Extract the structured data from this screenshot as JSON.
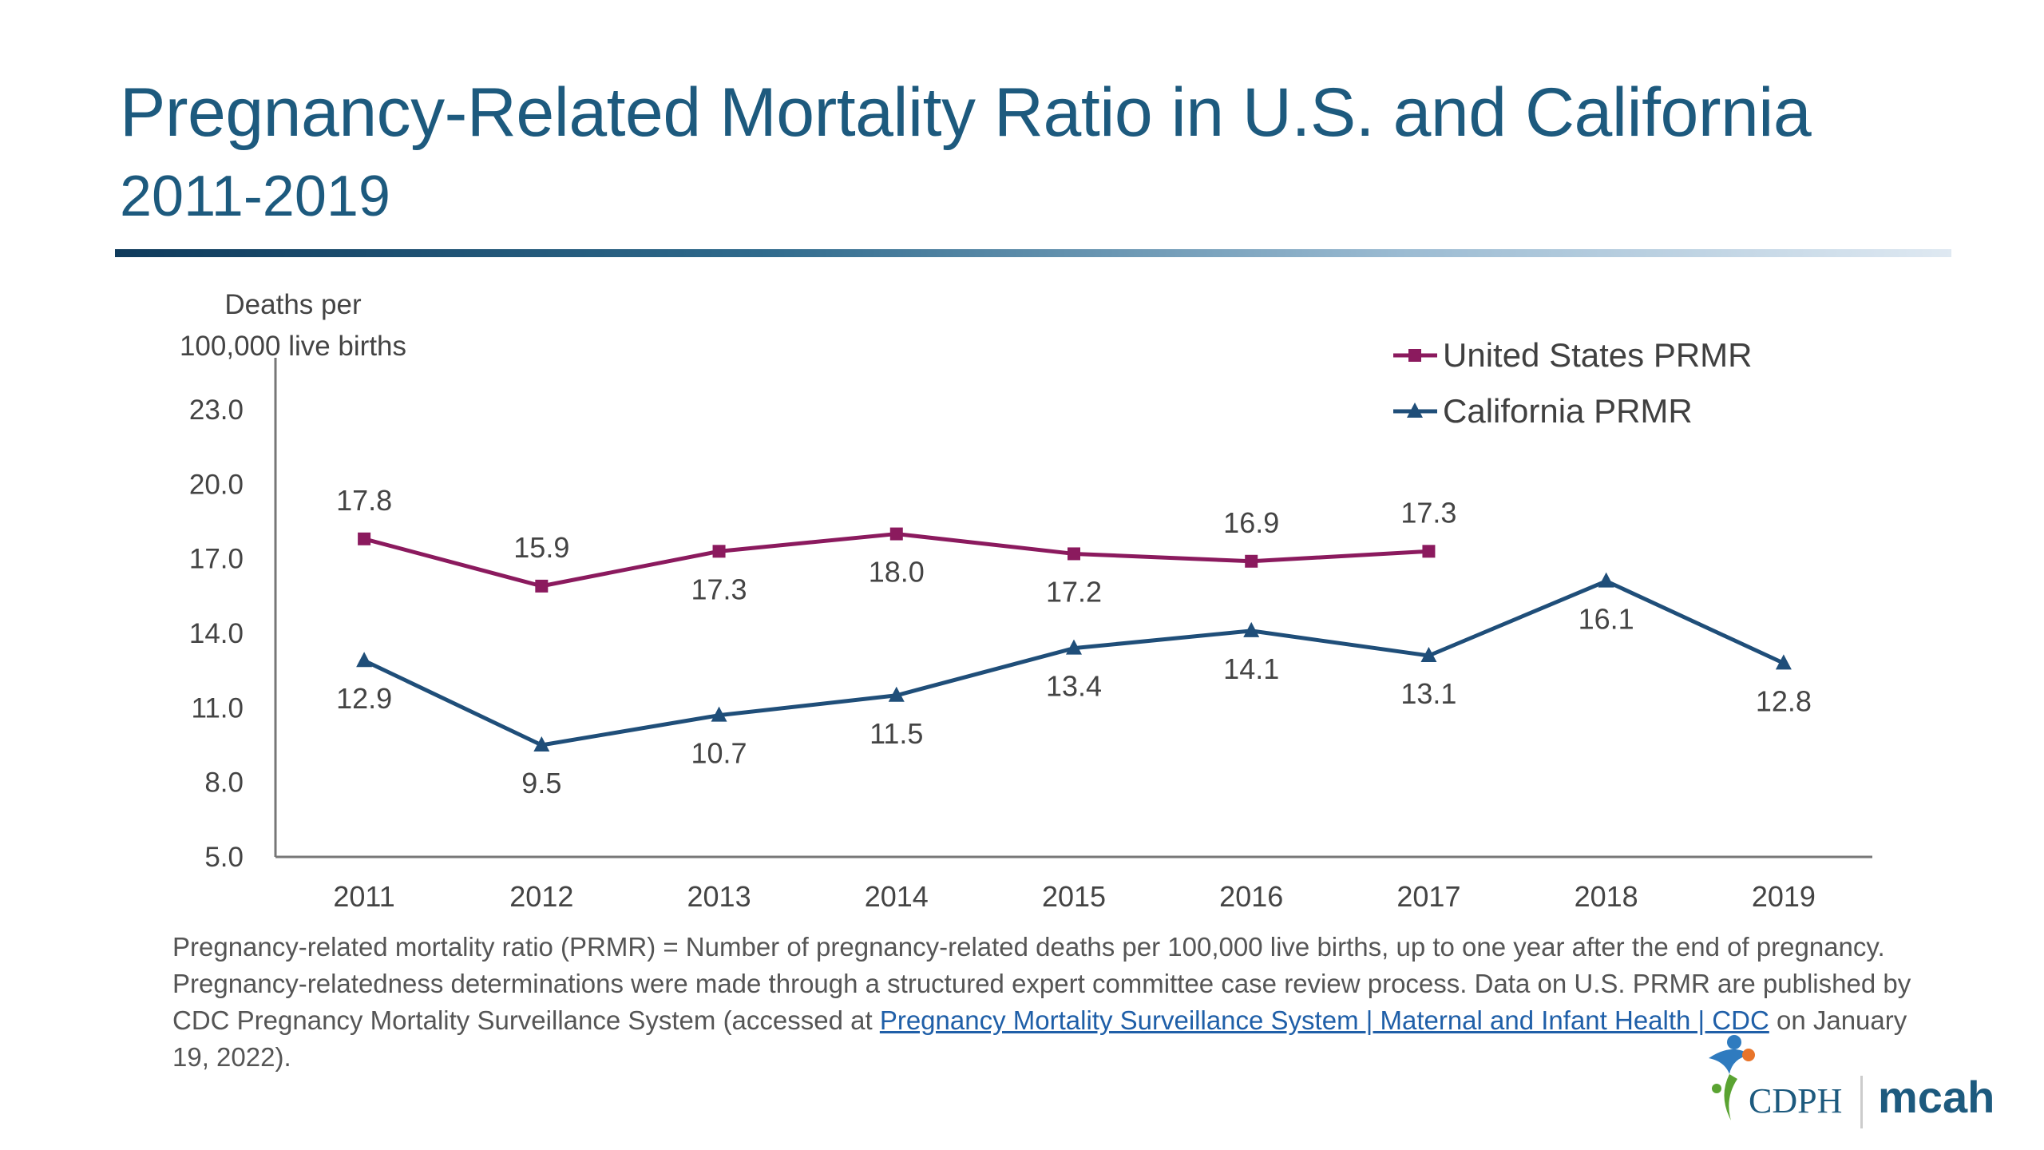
{
  "slide": {
    "title": "Pregnancy-Related Mortality Ratio in U.S. and California",
    "subtitle": "2011-2019"
  },
  "chart_data": {
    "type": "line",
    "ylabel_line1": "Deaths per",
    "ylabel_line2": "100,000 live births",
    "ylim": [
      5.0,
      23.0
    ],
    "yticks": [
      "23.0",
      "20.0",
      "17.0",
      "14.0",
      "11.0",
      "8.0",
      "5.0"
    ],
    "categories": [
      "2011",
      "2012",
      "2013",
      "2014",
      "2015",
      "2016",
      "2017",
      "2018",
      "2019"
    ],
    "grid": false,
    "legend_position": "top-right",
    "series": [
      {
        "name": "United States PRMR",
        "color": "#8b1a5e",
        "marker": "square",
        "values": [
          17.8,
          15.9,
          17.3,
          18.0,
          17.2,
          16.9,
          17.3,
          null,
          null
        ],
        "labels": [
          "17.8",
          "15.9",
          "17.3",
          "18.0",
          "17.2",
          "16.9",
          "17.3",
          null,
          null
        ],
        "label_pos": [
          "above",
          "above",
          "below",
          "below",
          "below",
          "above",
          "above",
          null,
          null
        ]
      },
      {
        "name": "California PRMR",
        "color": "#1f4e79",
        "marker": "triangle",
        "values": [
          12.9,
          9.5,
          10.7,
          11.5,
          13.4,
          14.1,
          13.1,
          16.1,
          12.8
        ],
        "labels": [
          "12.9",
          "9.5",
          "10.7",
          "11.5",
          "13.4",
          "14.1",
          "13.1",
          "16.1",
          "12.8"
        ],
        "label_pos": [
          "below",
          "below",
          "below",
          "below",
          "below",
          "below",
          "below",
          "below",
          "below"
        ]
      }
    ]
  },
  "footnote": {
    "text": "Pregnancy-related mortality ratio (PRMR) = Number of pregnancy-related deaths per 100,000 live births, up to one year after the end of pregnancy. Pregnancy-relatedness determinations were made through a structured expert committee case review process. Data on U.S. PRMR are published by CDC Pregnancy Mortality Surveillance System (accessed at ",
    "link_text": "Pregnancy Mortality Surveillance System | Maternal and Infant Health | CDC",
    "text_after": " on January 19, 2022)."
  },
  "logo": {
    "left": "CDPH",
    "right": "mcah"
  }
}
